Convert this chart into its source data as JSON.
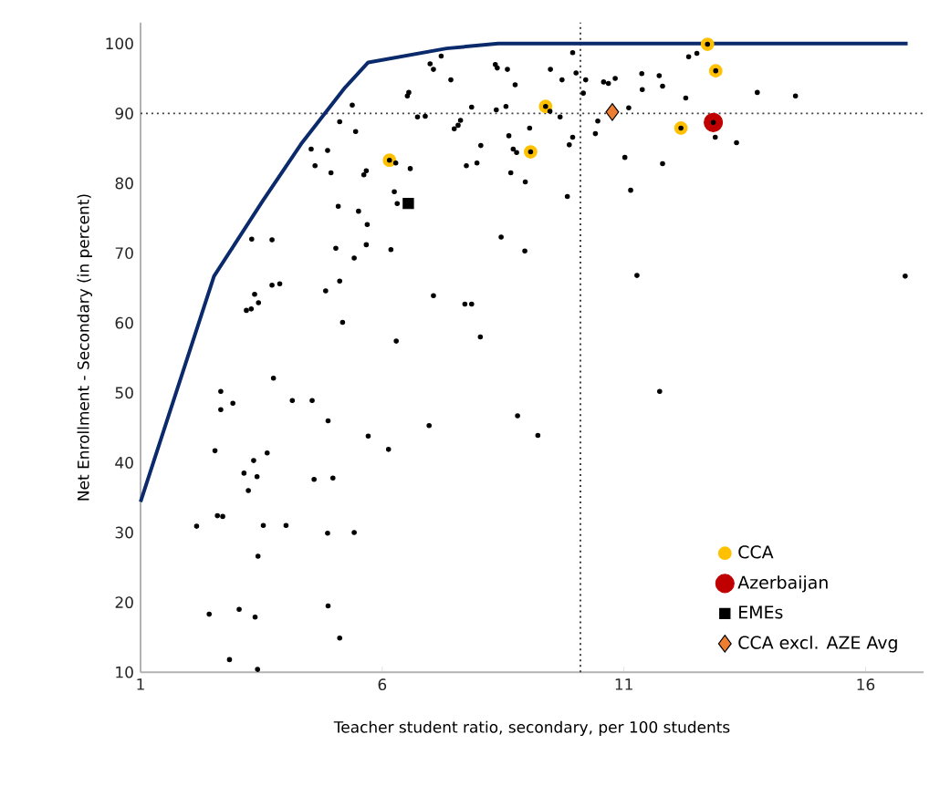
{
  "chart_data": {
    "type": "scatter",
    "xlabel": "Teacher student ratio, secondary, per 100 students",
    "ylabel": "Net Enrollment - Secondary  (in percent)",
    "xlim": [
      1,
      17.2
    ],
    "ylim": [
      10,
      103
    ],
    "xticks": [
      1,
      6,
      11,
      16
    ],
    "yticks": [
      10,
      20,
      30,
      40,
      50,
      60,
      70,
      80,
      90,
      100
    ],
    "grid": false,
    "legend": "bottom right",
    "ref_lines": [
      {
        "axis": "x",
        "value": 10.1,
        "color": "#404040",
        "line_style": "dotted"
      },
      {
        "axis": "y",
        "value": 90,
        "color": "#404040",
        "line_style": "dotted"
      }
    ],
    "series": [
      {
        "type": "line",
        "color": "#0b2a6b",
        "marker": "none",
        "line_style": "solid",
        "x": [
          1,
          2.52,
          3.53,
          4.32,
          5.23,
          5.71,
          7.33,
          8.4,
          16.87
        ],
        "values": [
          34.4,
          66.7,
          77.5,
          85.6,
          93.7,
          97.3,
          99.3,
          100,
          100
        ]
      },
      {
        "name": "CCA",
        "color": "#ffc000",
        "marker": "circle",
        "x": [
          6.15,
          9.07,
          9.38,
          12.73,
          12.9,
          12.18
        ],
        "values": [
          83.3,
          84.5,
          91.0,
          99.9,
          96.1,
          87.9
        ]
      },
      {
        "name": "Azerbaijan",
        "color": "#c00000",
        "marker": "circle",
        "x": [
          12.85
        ],
        "values": [
          88.7
        ]
      },
      {
        "name": "EMEs",
        "color": "#000000",
        "marker": "square",
        "x": [
          6.54
        ],
        "values": [
          77.1
        ]
      },
      {
        "name": "CCA excl. AZE Avg",
        "color": "#ed7d31",
        "marker": "diamond",
        "x": [
          10.76
        ],
        "values": [
          90.2
        ]
      },
      {
        "color": "#000000",
        "marker": "circle",
        "x": [
          6.99,
          7.06,
          7.22,
          7.42,
          8.34,
          8.38,
          8.59,
          8.75,
          6.55,
          6.52,
          5.38,
          5.12,
          5.45,
          6.73,
          6.89,
          7.62,
          7.57,
          7.49,
          7.85,
          8.36,
          8.56,
          4.53,
          4.87,
          4.61,
          4.94,
          5.67,
          5.62,
          6.58,
          6.28,
          8.04,
          7.96,
          7.74,
          8.62,
          8.71,
          8.78,
          8.66,
          8.96,
          5.09,
          5.51,
          6.25,
          6.31,
          5.69,
          5.04,
          5.42,
          5.67,
          6.18,
          8.46,
          8.95,
          3.3,
          3.72,
          4.83,
          5.12,
          3.36,
          3.44,
          3.72,
          3.88,
          3.19,
          3.29,
          5.18,
          7.06,
          7.71,
          7.85,
          8.03,
          6.29,
          9.94,
          9.48,
          9.72,
          10.01,
          10.21,
          10.16,
          10.58,
          10.68,
          10.82,
          11.37,
          11.73,
          11.38,
          11.8,
          12.34,
          12.51,
          12.28,
          13.76,
          14.55,
          9.47,
          9.68,
          9.05,
          10.46,
          10.41,
          9.94,
          9.87,
          11.1,
          11.02,
          11.8,
          11.14,
          9.83,
          12.89,
          13.33,
          11.27,
          16.82,
          3.75,
          2.66,
          2.66,
          2.91,
          4.14,
          4.55,
          4.88,
          5.71,
          6.13,
          6.97,
          8.8,
          2.54,
          3.34,
          3.62,
          3.14,
          3.41,
          3.23,
          4.59,
          4.98,
          2.16,
          2.59,
          2.7,
          3.54,
          4.01,
          4.87,
          5.42,
          3.43,
          2.42,
          3.04,
          3.37,
          4.88,
          5.12,
          2.84,
          3.42,
          9.22,
          11.74,
          6.15,
          9.07,
          9.38,
          12.73,
          12.9,
          12.18,
          12.85
        ],
        "values": [
          97.1,
          96.3,
          98.2,
          94.8,
          97.0,
          96.5,
          96.3,
          94.1,
          93.0,
          92.5,
          91.2,
          88.8,
          87.4,
          89.5,
          89.6,
          89.0,
          88.3,
          87.8,
          90.9,
          90.5,
          91.0,
          84.9,
          84.7,
          82.5,
          81.5,
          81.8,
          81.2,
          82.1,
          82.9,
          85.4,
          82.9,
          82.5,
          86.8,
          84.9,
          84.4,
          81.5,
          80.2,
          76.7,
          76.0,
          78.8,
          77.1,
          74.1,
          70.7,
          69.3,
          71.2,
          70.5,
          72.3,
          70.3,
          72.0,
          71.9,
          64.6,
          66.0,
          64.1,
          62.9,
          65.4,
          65.6,
          61.8,
          62.0,
          60.1,
          63.9,
          62.7,
          62.7,
          58.0,
          57.4,
          98.7,
          96.3,
          94.8,
          95.8,
          94.8,
          92.9,
          94.5,
          94.3,
          95.0,
          95.7,
          95.4,
          93.4,
          93.9,
          98.1,
          98.6,
          92.2,
          93.0,
          92.5,
          90.3,
          89.5,
          87.9,
          88.9,
          87.1,
          86.6,
          85.5,
          90.8,
          83.7,
          82.8,
          79.0,
          78.1,
          86.6,
          85.8,
          66.8,
          66.7,
          52.1,
          50.2,
          47.6,
          48.5,
          48.9,
          48.9,
          46.0,
          43.8,
          41.9,
          45.3,
          46.7,
          41.7,
          40.3,
          41.4,
          38.5,
          38.0,
          36.0,
          37.6,
          37.8,
          30.9,
          32.4,
          32.3,
          31.0,
          31.0,
          29.9,
          30.0,
          26.6,
          18.3,
          19.0,
          17.9,
          19.5,
          14.9,
          11.8,
          10.4,
          43.9,
          50.2,
          83.3,
          84.5,
          91.0,
          99.9,
          96.1,
          87.9,
          88.7
        ]
      }
    ]
  }
}
